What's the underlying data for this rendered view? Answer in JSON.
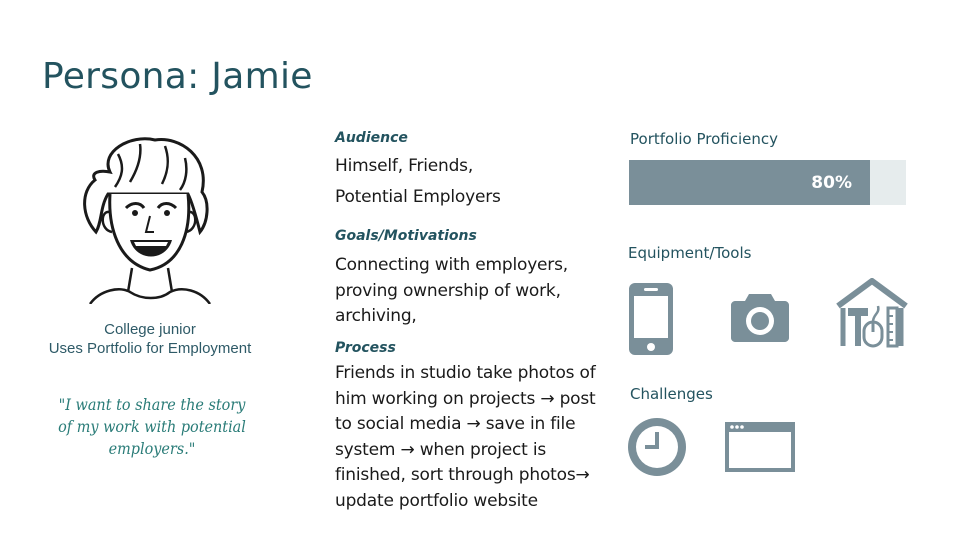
{
  "title": "Persona: Jamie",
  "left": {
    "caption_line1": "College junior",
    "caption_line2": "Uses Portfolio for Employment",
    "quote_line1": "\"I want to share the story",
    "quote_line2": "of my work with potential",
    "quote_line3": "employers.\""
  },
  "middle": {
    "audience_label": "Audience",
    "audience_line1": "Himself, Friends,",
    "audience_line2": "Potential Employers",
    "goals_label": "Goals/Motivations",
    "goals_lines": [
      "Connecting with employers,",
      "proving ownership of work,",
      "archiving,"
    ],
    "process_label": "Process",
    "process_lines": [
      "Friends in studio take photos of",
      "him working on projects → post",
      "to social media → save in file",
      "system → when project is",
      "finished, sort through photos→",
      "update portfolio website"
    ]
  },
  "right": {
    "proficiency_label": "Portfolio Proficiency",
    "proficiency_value": 0.8,
    "proficiency_text": "80%",
    "equipment_label": "Equipment/Tools",
    "equipment_icons": [
      "smartphone-icon",
      "camera-icon",
      "home-tools-icon"
    ],
    "challenges_label": "Challenges",
    "challenge_icons": [
      "clock-icon",
      "browser-window-icon"
    ]
  },
  "colors": {
    "title": "#23535f",
    "icon": "#7a8f99",
    "quote": "#2a7c78",
    "bar_track": "#e6eced"
  }
}
